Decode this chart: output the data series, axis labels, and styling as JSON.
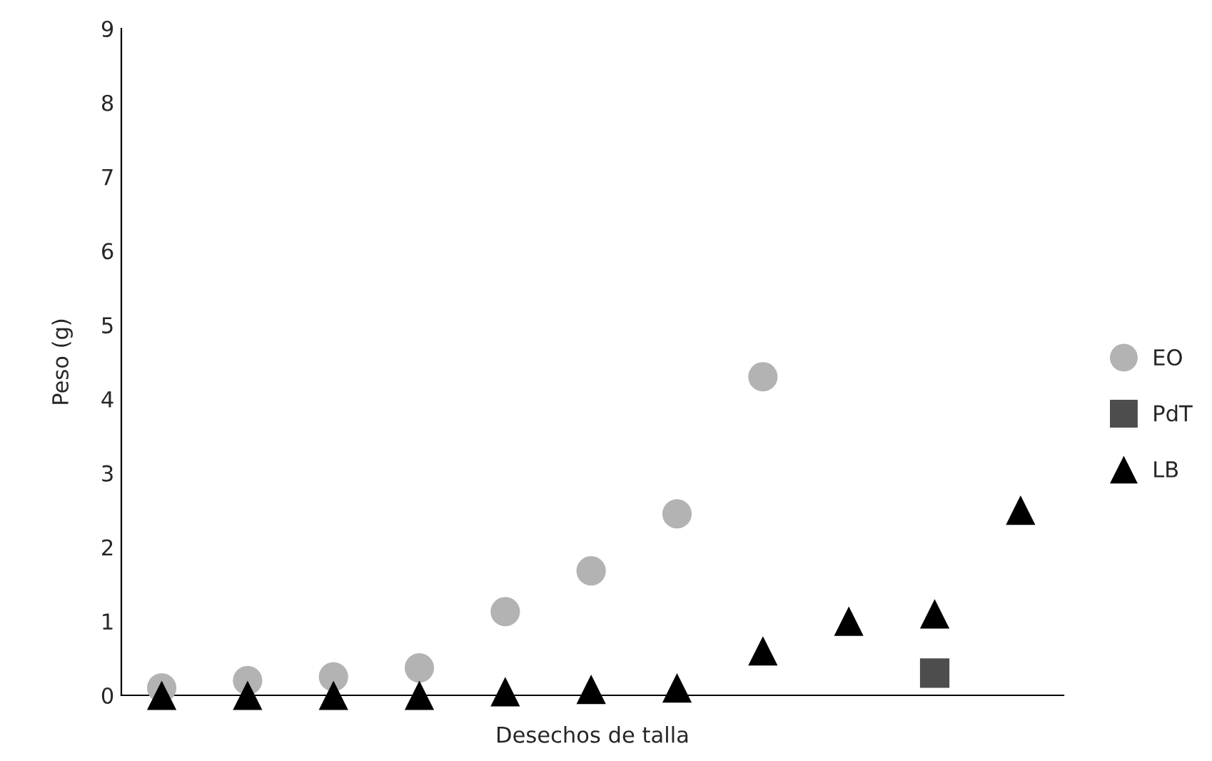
{
  "chart_data": {
    "type": "scatter",
    "xlabel": "Desechos de talla",
    "ylabel": "Peso (g)",
    "categories": [
      null,
      null,
      null,
      null,
      null,
      null,
      null,
      null,
      null,
      null,
      null
    ],
    "ylim": [
      0,
      9
    ],
    "yticks": [
      0,
      1,
      2,
      3,
      4,
      5,
      6,
      7,
      8,
      9
    ],
    "grid": false,
    "legend": "right",
    "series": [
      {
        "name": "EO",
        "color": "#b3b3b3",
        "marker": "circle",
        "values": [
          0.1,
          0.2,
          0.25,
          0.37,
          1.13,
          1.68,
          2.45,
          4.3,
          null,
          null,
          null
        ]
      },
      {
        "name": "PdT",
        "color": "#4d4d4d",
        "marker": "square",
        "values": [
          null,
          null,
          null,
          null,
          null,
          null,
          null,
          null,
          null,
          0.3,
          null
        ]
      },
      {
        "name": "LB",
        "color": "#000000",
        "marker": "triangle",
        "values": [
          0,
          0,
          0,
          0,
          0.05,
          0.08,
          0.1,
          0.6,
          1.0,
          1.1,
          2.5
        ]
      }
    ]
  }
}
